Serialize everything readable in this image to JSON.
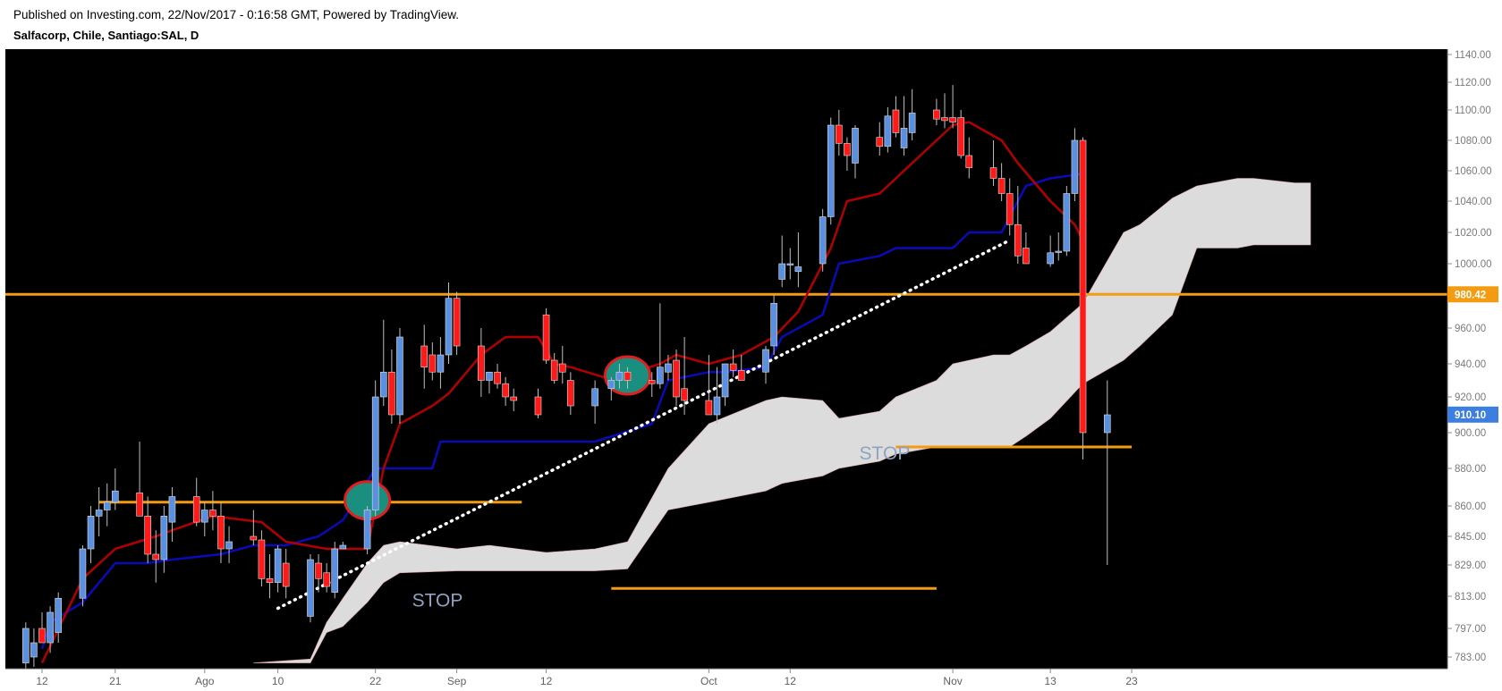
{
  "header": {
    "published": "Published on Investing.com, 22/Nov/2017 - 0:16:58 GMT, Powered by TradingView.",
    "symbol": "Salfacorp, Chile, Santiago:SAL, D"
  },
  "colors": {
    "background": "#000000",
    "bullish_candle": "#5b8fe0",
    "bearish_candle": "#ff1a1a",
    "wick": "#bfbfbf",
    "tenkan_line": "#b00000",
    "kijun_line": "#0a0ab8",
    "cloud": "#dcdcdc",
    "level_line": "#f39c12",
    "trendline": "#ffffff",
    "marker_fill": "#1a8f80",
    "marker_edge": "#e02020",
    "last_price_badge": "#3d7fe0",
    "level_badge": "#f39c12"
  },
  "chart_data": {
    "type": "candlestick",
    "symbol": "Salfacorp, Chile, Santiago:SAL, D",
    "interval": "D",
    "x_axis": {
      "ticks": [
        {
          "label": "12",
          "date": "2017-07-12"
        },
        {
          "label": "21",
          "date": "2017-07-21"
        },
        {
          "label": "Ago",
          "date": "2017-08-01"
        },
        {
          "label": "10",
          "date": "2017-08-10"
        },
        {
          "label": "22",
          "date": "2017-08-22"
        },
        {
          "label": "Sep",
          "date": "2017-09-01"
        },
        {
          "label": "12",
          "date": "2017-09-12"
        },
        {
          "label": "Oct",
          "date": "2017-10-02"
        },
        {
          "label": "12",
          "date": "2017-10-12"
        },
        {
          "label": "Nov",
          "date": "2017-11-01"
        },
        {
          "label": "13",
          "date": "2017-11-13"
        },
        {
          "label": "23",
          "date": "2017-11-23"
        }
      ]
    },
    "y_axis": {
      "ticks": [
        "1140.00",
        "1120.00",
        "1100.00",
        "1080.00",
        "1060.00",
        "1040.00",
        "1020.00",
        "1000.00",
        "980.00",
        "960.00",
        "940.00",
        "920.00",
        "900.00",
        "880.00",
        "860.00",
        "845.00",
        "829.00",
        "813.00",
        "797.00",
        "783.00"
      ],
      "range": [
        778,
        1144
      ]
    },
    "candles": [
      {
        "date": "2017-07-10",
        "o": 780,
        "h": 800,
        "l": 775,
        "c": 797
      },
      {
        "date": "2017-07-11",
        "o": 783,
        "h": 797,
        "l": 778,
        "c": 790
      },
      {
        "date": "2017-07-12",
        "o": 797,
        "h": 805,
        "l": 790,
        "c": 790
      },
      {
        "date": "2017-07-13",
        "o": 790,
        "h": 808,
        "l": 785,
        "c": 805
      },
      {
        "date": "2017-07-14",
        "o": 795,
        "h": 815,
        "l": 790,
        "c": 812
      },
      {
        "date": "2017-07-17",
        "o": 812,
        "h": 840,
        "l": 808,
        "c": 838
      },
      {
        "date": "2017-07-18",
        "o": 838,
        "h": 860,
        "l": 830,
        "c": 855
      },
      {
        "date": "2017-07-19",
        "o": 855,
        "h": 870,
        "l": 845,
        "c": 858
      },
      {
        "date": "2017-07-20",
        "o": 858,
        "h": 872,
        "l": 850,
        "c": 862
      },
      {
        "date": "2017-07-21",
        "o": 862,
        "h": 880,
        "l": 858,
        "c": 868
      },
      {
        "date": "2017-07-24",
        "o": 867,
        "h": 895,
        "l": 855,
        "c": 855
      },
      {
        "date": "2017-07-25",
        "o": 855,
        "h": 865,
        "l": 830,
        "c": 835
      },
      {
        "date": "2017-07-26",
        "o": 835,
        "h": 848,
        "l": 820,
        "c": 832
      },
      {
        "date": "2017-07-27",
        "o": 832,
        "h": 860,
        "l": 825,
        "c": 855
      },
      {
        "date": "2017-07-28",
        "o": 852,
        "h": 870,
        "l": 842,
        "c": 865
      },
      {
        "date": "2017-07-31",
        "o": 865,
        "h": 875,
        "l": 850,
        "c": 852
      },
      {
        "date": "2017-08-01",
        "o": 852,
        "h": 862,
        "l": 845,
        "c": 858
      },
      {
        "date": "2017-08-02",
        "o": 858,
        "h": 868,
        "l": 848,
        "c": 855
      },
      {
        "date": "2017-08-03",
        "o": 855,
        "h": 862,
        "l": 830,
        "c": 838
      },
      {
        "date": "2017-08-04",
        "o": 838,
        "h": 850,
        "l": 830,
        "c": 842
      },
      {
        "date": "2017-08-07",
        "o": 845,
        "h": 858,
        "l": 840,
        "c": 843
      },
      {
        "date": "2017-08-08",
        "o": 843,
        "h": 848,
        "l": 818,
        "c": 822
      },
      {
        "date": "2017-08-09",
        "o": 822,
        "h": 835,
        "l": 812,
        "c": 820
      },
      {
        "date": "2017-08-10",
        "o": 820,
        "h": 840,
        "l": 815,
        "c": 838
      },
      {
        "date": "2017-08-11",
        "o": 830,
        "h": 838,
        "l": 812,
        "c": 818
      },
      {
        "date": "2017-08-14",
        "o": 803,
        "h": 835,
        "l": 800,
        "c": 832
      },
      {
        "date": "2017-08-15",
        "o": 830,
        "h": 835,
        "l": 815,
        "c": 822
      },
      {
        "date": "2017-08-16",
        "o": 825,
        "h": 830,
        "l": 815,
        "c": 818
      },
      {
        "date": "2017-08-17",
        "o": 815,
        "h": 842,
        "l": 812,
        "c": 838
      },
      {
        "date": "2017-08-18",
        "o": 838,
        "h": 842,
        "l": 838,
        "c": 840
      },
      {
        "date": "2017-08-21",
        "o": 838,
        "h": 860,
        "l": 835,
        "c": 858
      },
      {
        "date": "2017-08-22",
        "o": 858,
        "h": 930,
        "l": 855,
        "c": 920
      },
      {
        "date": "2017-08-23",
        "o": 920,
        "h": 965,
        "l": 915,
        "c": 935
      },
      {
        "date": "2017-08-24",
        "o": 935,
        "h": 948,
        "l": 905,
        "c": 910
      },
      {
        "date": "2017-08-25",
        "o": 910,
        "h": 960,
        "l": 905,
        "c": 955
      },
      {
        "date": "2017-08-28",
        "o": 950,
        "h": 962,
        "l": 925,
        "c": 938
      },
      {
        "date": "2017-08-29",
        "o": 945,
        "h": 952,
        "l": 930,
        "c": 935
      },
      {
        "date": "2017-08-30",
        "o": 935,
        "h": 955,
        "l": 925,
        "c": 945
      },
      {
        "date": "2017-08-31",
        "o": 945,
        "h": 988,
        "l": 940,
        "c": 978
      },
      {
        "date": "2017-09-01",
        "o": 978,
        "h": 982,
        "l": 945,
        "c": 950
      },
      {
        "date": "2017-09-04",
        "o": 950,
        "h": 960,
        "l": 920,
        "c": 930
      },
      {
        "date": "2017-09-05",
        "o": 930,
        "h": 935,
        "l": 922,
        "c": 935
      },
      {
        "date": "2017-09-06",
        "o": 935,
        "h": 940,
        "l": 925,
        "c": 928
      },
      {
        "date": "2017-09-07",
        "o": 928,
        "h": 932,
        "l": 915,
        "c": 920
      },
      {
        "date": "2017-09-08",
        "o": 920,
        "h": 925,
        "l": 912,
        "c": 918
      },
      {
        "date": "2017-09-11",
        "o": 920,
        "h": 925,
        "l": 908,
        "c": 910
      },
      {
        "date": "2017-09-12",
        "o": 968,
        "h": 972,
        "l": 940,
        "c": 942
      },
      {
        "date": "2017-09-13",
        "o": 942,
        "h": 946,
        "l": 928,
        "c": 930
      },
      {
        "date": "2017-09-14",
        "o": 940,
        "h": 950,
        "l": 928,
        "c": 935
      },
      {
        "date": "2017-09-15",
        "o": 930,
        "h": 935,
        "l": 910,
        "c": 915
      },
      {
        "date": "2017-09-18",
        "o": 915,
        "h": 930,
        "l": 905,
        "c": 925
      },
      {
        "date": "2017-09-20",
        "o": 925,
        "h": 932,
        "l": 918,
        "c": 930
      },
      {
        "date": "2017-09-21",
        "o": 930,
        "h": 940,
        "l": 925,
        "c": 935
      },
      {
        "date": "2017-09-22",
        "o": 935,
        "h": 938,
        "l": 925,
        "c": 930
      },
      {
        "date": "2017-09-25",
        "o": 930,
        "h": 935,
        "l": 920,
        "c": 928
      },
      {
        "date": "2017-09-26",
        "o": 928,
        "h": 975,
        "l": 925,
        "c": 938
      },
      {
        "date": "2017-09-27",
        "o": 935,
        "h": 945,
        "l": 930,
        "c": 940
      },
      {
        "date": "2017-09-28",
        "o": 942,
        "h": 948,
        "l": 915,
        "c": 920
      },
      {
        "date": "2017-09-29",
        "o": 925,
        "h": 955,
        "l": 910,
        "c": 918
      },
      {
        "date": "2017-10-02",
        "o": 918,
        "h": 945,
        "l": 910,
        "c": 910
      },
      {
        "date": "2017-10-03",
        "o": 910,
        "h": 938,
        "l": 905,
        "c": 920
      },
      {
        "date": "2017-10-04",
        "o": 920,
        "h": 940,
        "l": 915,
        "c": 940
      },
      {
        "date": "2017-10-05",
        "o": 940,
        "h": 948,
        "l": 932,
        "c": 936
      },
      {
        "date": "2017-10-06",
        "o": 936,
        "h": 945,
        "l": 930,
        "c": 930
      },
      {
        "date": "2017-10-09",
        "o": 935,
        "h": 950,
        "l": 928,
        "c": 948
      },
      {
        "date": "2017-10-10",
        "o": 950,
        "h": 980,
        "l": 945,
        "c": 975
      },
      {
        "date": "2017-10-11",
        "o": 990,
        "h": 1018,
        "l": 985,
        "c": 1000
      },
      {
        "date": "2017-10-12",
        "o": 1000,
        "h": 1010,
        "l": 990,
        "c": 1000
      },
      {
        "date": "2017-10-13",
        "o": 995,
        "h": 1020,
        "l": 985,
        "c": 998
      },
      {
        "date": "2017-10-16",
        "o": 1000,
        "h": 1035,
        "l": 995,
        "c": 1030
      },
      {
        "date": "2017-10-17",
        "o": 1030,
        "h": 1095,
        "l": 1025,
        "c": 1090
      },
      {
        "date": "2017-10-18",
        "o": 1090,
        "h": 1100,
        "l": 1070,
        "c": 1078
      },
      {
        "date": "2017-10-19",
        "o": 1078,
        "h": 1082,
        "l": 1060,
        "c": 1070
      },
      {
        "date": "2017-10-20",
        "o": 1065,
        "h": 1090,
        "l": 1055,
        "c": 1088
      },
      {
        "date": "2017-10-23",
        "o": 1082,
        "h": 1092,
        "l": 1070,
        "c": 1076
      },
      {
        "date": "2017-10-24",
        "o": 1076,
        "h": 1102,
        "l": 1072,
        "c": 1096
      },
      {
        "date": "2017-10-25",
        "o": 1100,
        "h": 1110,
        "l": 1082,
        "c": 1085
      },
      {
        "date": "2017-10-26",
        "o": 1075,
        "h": 1110,
        "l": 1070,
        "c": 1088
      },
      {
        "date": "2017-10-27",
        "o": 1085,
        "h": 1115,
        "l": 1080,
        "c": 1098
      },
      {
        "date": "2017-10-30",
        "o": 1100,
        "h": 1108,
        "l": 1090,
        "c": 1094
      },
      {
        "date": "2017-10-31",
        "o": 1095,
        "h": 1112,
        "l": 1088,
        "c": 1093
      },
      {
        "date": "2017-11-01",
        "o": 1095,
        "h": 1118,
        "l": 1088,
        "c": 1092
      },
      {
        "date": "2017-11-02",
        "o": 1095,
        "h": 1100,
        "l": 1068,
        "c": 1070
      },
      {
        "date": "2017-11-03",
        "o": 1070,
        "h": 1082,
        "l": 1055,
        "c": 1062
      },
      {
        "date": "2017-11-06",
        "o": 1062,
        "h": 1080,
        "l": 1050,
        "c": 1055
      },
      {
        "date": "2017-11-07",
        "o": 1055,
        "h": 1065,
        "l": 1040,
        "c": 1045
      },
      {
        "date": "2017-11-08",
        "o": 1045,
        "h": 1055,
        "l": 1018,
        "c": 1025
      },
      {
        "date": "2017-11-09",
        "o": 1025,
        "h": 1050,
        "l": 1000,
        "c": 1005
      },
      {
        "date": "2017-11-10",
        "o": 1010,
        "h": 1020,
        "l": 1000,
        "c": 1000
      },
      {
        "date": "2017-11-13",
        "o": 1000,
        "h": 1018,
        "l": 998,
        "c": 1007
      },
      {
        "date": "2017-11-14",
        "o": 1008,
        "h": 1020,
        "l": 1002,
        "c": 1008
      },
      {
        "date": "2017-11-15",
        "o": 1008,
        "h": 1050,
        "l": 1005,
        "c": 1045
      },
      {
        "date": "2017-11-16",
        "o": 1045,
        "h": 1088,
        "l": 1040,
        "c": 1080
      },
      {
        "date": "2017-11-17",
        "o": 1080,
        "h": 1082,
        "l": 885,
        "c": 900
      },
      {
        "date": "2017-11-20",
        "o": 900,
        "h": 930,
        "l": 829,
        "c": 910
      }
    ],
    "tenkan_sen": {
      "color": "#b00000",
      "x": [
        "2017-07-12",
        "2017-07-17",
        "2017-07-21",
        "2017-07-26",
        "2017-07-28",
        "2017-08-02",
        "2017-08-08",
        "2017-08-11",
        "2017-08-16",
        "2017-08-21",
        "2017-08-23",
        "2017-08-25",
        "2017-08-29",
        "2017-08-31",
        "2017-09-04",
        "2017-09-07",
        "2017-09-11",
        "2017-09-13",
        "2017-09-15",
        "2017-09-19",
        "2017-09-21",
        "2017-09-26",
        "2017-09-28",
        "2017-10-02",
        "2017-10-06",
        "2017-10-10",
        "2017-10-13",
        "2017-10-17",
        "2017-10-19",
        "2017-10-23",
        "2017-10-27",
        "2017-11-01",
        "2017-11-03",
        "2017-11-07",
        "2017-11-09",
        "2017-11-13",
        "2017-11-16",
        "2017-11-17"
      ],
      "y": [
        780,
        822,
        838,
        845,
        848,
        855,
        852,
        842,
        838,
        838,
        880,
        905,
        915,
        922,
        945,
        955,
        955,
        940,
        938,
        932,
        932,
        940,
        945,
        940,
        945,
        955,
        970,
        1010,
        1040,
        1045,
        1065,
        1090,
        1092,
        1080,
        1065,
        1040,
        1025,
        1015
      ]
    },
    "kijun_sen": {
      "color": "#0a0ab8",
      "x": [
        "2017-07-12",
        "2017-07-13",
        "2017-07-17",
        "2017-07-21",
        "2017-07-25",
        "2017-07-28",
        "2017-08-03",
        "2017-08-07",
        "2017-08-11",
        "2017-08-15",
        "2017-08-18",
        "2017-08-22",
        "2017-08-29",
        "2017-08-30",
        "2017-09-18",
        "2017-09-25",
        "2017-09-27",
        "2017-10-02",
        "2017-10-04",
        "2017-10-09",
        "2017-10-11",
        "2017-10-16",
        "2017-10-18",
        "2017-10-23",
        "2017-10-25",
        "2017-11-01",
        "2017-11-03",
        "2017-11-07",
        "2017-11-09",
        "2017-11-10",
        "2017-11-13",
        "2017-11-17"
      ],
      "y": [
        787,
        800,
        810,
        830,
        830,
        832,
        835,
        840,
        840,
        845,
        853,
        880,
        880,
        895,
        895,
        905,
        930,
        935,
        935,
        938,
        955,
        968,
        1000,
        1005,
        1010,
        1010,
        1020,
        1020,
        1040,
        1050,
        1055,
        1058
      ]
    },
    "cloud": {
      "color": "#dcdcdc",
      "x": [
        "2017-08-07",
        "2017-08-14",
        "2017-08-16",
        "2017-08-18",
        "2017-08-21",
        "2017-08-23",
        "2017-08-25",
        "2017-09-01",
        "2017-09-05",
        "2017-09-12",
        "2017-09-18",
        "2017-09-22",
        "2017-09-27",
        "2017-10-02",
        "2017-10-09",
        "2017-10-11",
        "2017-10-16",
        "2017-10-18",
        "2017-10-23",
        "2017-10-25",
        "2017-10-30",
        "2017-11-01",
        "2017-11-06",
        "2017-11-08",
        "2017-11-10",
        "2017-11-13",
        "2017-11-17",
        "2017-11-22",
        "2017-11-24",
        "2017-11-28",
        "2017-12-01",
        "2017-12-06",
        "2017-12-08",
        "2017-12-13",
        "2017-12-15"
      ],
      "upper": [
        780,
        782,
        800,
        812,
        830,
        840,
        842,
        838,
        840,
        836,
        838,
        842,
        880,
        905,
        918,
        920,
        918,
        908,
        912,
        920,
        930,
        940,
        945,
        945,
        950,
        958,
        975,
        1020,
        1025,
        1042,
        1050,
        1055,
        1055,
        1052,
        1052
      ],
      "lower": [
        780,
        780,
        795,
        798,
        810,
        820,
        825,
        826,
        826,
        826,
        826,
        827,
        858,
        862,
        868,
        872,
        876,
        880,
        884,
        888,
        892,
        892,
        892,
        892,
        898,
        908,
        928,
        942,
        950,
        968,
        1010,
        1010,
        1012,
        1012,
        1012
      ]
    },
    "annotations": {
      "horizontal_levels": [
        {
          "price": 980.42,
          "label": "980.42",
          "color": "#f39c12"
        },
        {
          "price": 862,
          "from": "2017-07-19",
          "to": "2017-09-09",
          "color": "#f39c12"
        },
        {
          "price": 817,
          "from": "2017-09-20",
          "to": "2017-10-30",
          "color": "#f39c12"
        },
        {
          "price": 892,
          "from": "2017-10-25",
          "to": "2017-11-23",
          "color": "#f39c12"
        }
      ],
      "texts": [
        {
          "text": "STOP",
          "date": "2017-09-01",
          "price": 808
        },
        {
          "text": "STOP",
          "date": "2017-10-26",
          "price": 885
        }
      ],
      "trendline": {
        "from": {
          "date": "2017-08-10",
          "price": 807
        },
        "to": {
          "date": "2017-11-08",
          "price": 1015
        },
        "style": "dotted",
        "color": "#ffffff"
      },
      "markers": [
        {
          "date": "2017-08-21",
          "price": 863
        },
        {
          "date": "2017-09-22",
          "price": 933
        }
      ]
    },
    "last_price": {
      "value": "910.10",
      "color": "#3d7fe0"
    },
    "grid": false,
    "legend": "none"
  }
}
